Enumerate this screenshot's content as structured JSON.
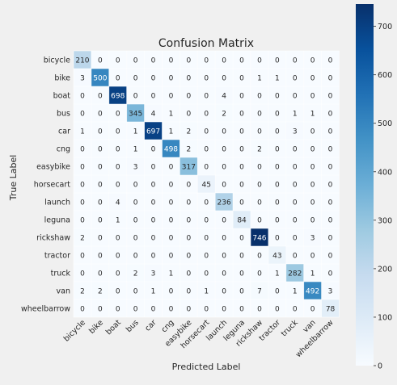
{
  "chart_data": {
    "type": "heatmap",
    "title": "Confusion Matrix",
    "xlabel": "Predicted Label",
    "ylabel": "True Label",
    "labels": [
      "bicycle",
      "bike",
      "boat",
      "bus",
      "car",
      "cng",
      "easybike",
      "horsecart",
      "launch",
      "leguna",
      "rickshaw",
      "tractor",
      "truck",
      "van",
      "wheelbarrow"
    ],
    "matrix": [
      [
        210,
        0,
        0,
        0,
        0,
        0,
        0,
        0,
        0,
        0,
        0,
        0,
        0,
        0,
        0
      ],
      [
        3,
        500,
        0,
        0,
        0,
        0,
        0,
        0,
        0,
        0,
        1,
        1,
        0,
        0,
        0
      ],
      [
        0,
        0,
        698,
        0,
        0,
        0,
        0,
        0,
        4,
        0,
        0,
        0,
        0,
        0,
        0
      ],
      [
        0,
        0,
        0,
        345,
        4,
        1,
        0,
        0,
        2,
        0,
        0,
        0,
        1,
        1,
        0
      ],
      [
        1,
        0,
        0,
        1,
        697,
        1,
        2,
        0,
        0,
        0,
        0,
        0,
        3,
        0,
        0
      ],
      [
        0,
        0,
        0,
        1,
        0,
        498,
        2,
        0,
        0,
        0,
        2,
        0,
        0,
        0,
        0
      ],
      [
        0,
        0,
        0,
        3,
        0,
        0,
        317,
        0,
        0,
        0,
        0,
        0,
        0,
        0,
        0
      ],
      [
        0,
        0,
        0,
        0,
        0,
        0,
        0,
        45,
        0,
        0,
        0,
        0,
        0,
        0,
        0
      ],
      [
        0,
        0,
        4,
        0,
        0,
        0,
        0,
        0,
        236,
        0,
        0,
        0,
        0,
        0,
        0
      ],
      [
        0,
        0,
        1,
        0,
        0,
        0,
        0,
        0,
        0,
        84,
        0,
        0,
        0,
        0,
        0
      ],
      [
        2,
        0,
        0,
        0,
        0,
        0,
        0,
        0,
        0,
        0,
        746,
        0,
        0,
        3,
        0
      ],
      [
        0,
        0,
        0,
        0,
        0,
        0,
        0,
        0,
        0,
        0,
        0,
        43,
        0,
        0,
        0
      ],
      [
        0,
        0,
        0,
        2,
        3,
        1,
        0,
        0,
        0,
        0,
        0,
        1,
        282,
        1,
        0
      ],
      [
        2,
        2,
        0,
        0,
        1,
        0,
        0,
        1,
        0,
        0,
        7,
        0,
        1,
        492,
        3
      ],
      [
        0,
        0,
        0,
        0,
        0,
        0,
        0,
        0,
        0,
        0,
        0,
        0,
        0,
        0,
        78
      ]
    ],
    "color_range": [
      0,
      746
    ],
    "colorbar_ticks": [
      0,
      100,
      200,
      300,
      400,
      500,
      600,
      700
    ],
    "colormap": "Blues",
    "grid": true
  },
  "colors": {
    "background": "#f0f0f0",
    "grid": "#ffffff",
    "text_dark": "#262626",
    "text_light": "#ffffff"
  }
}
